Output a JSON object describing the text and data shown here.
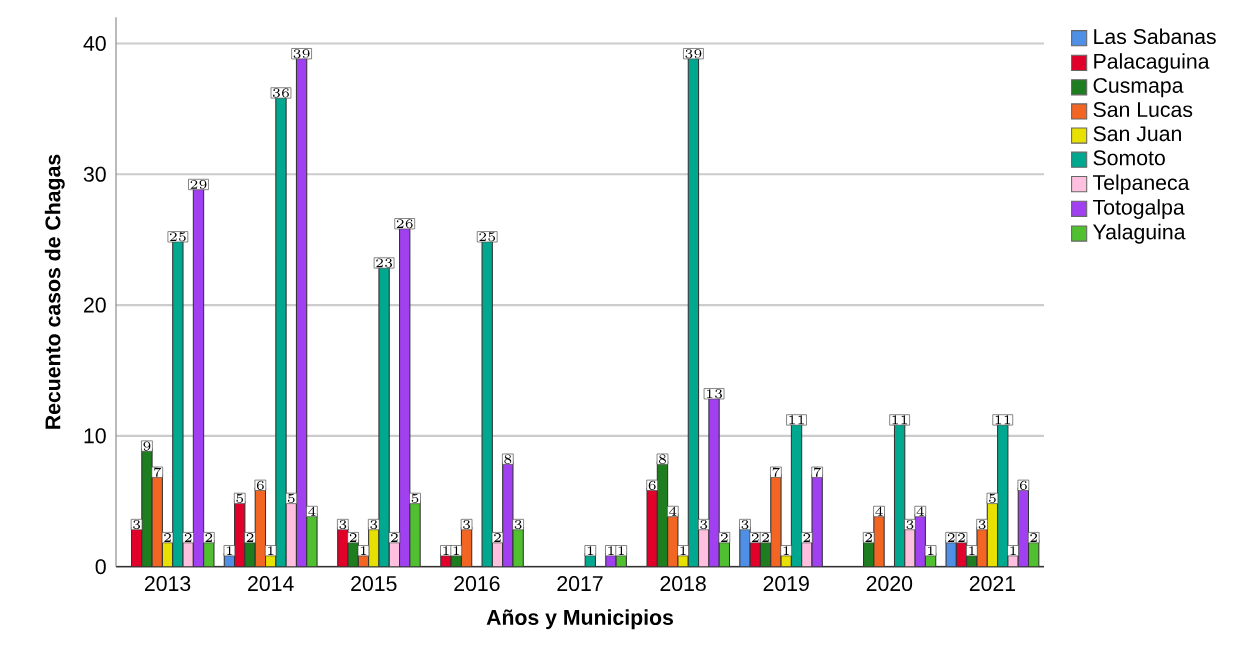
{
  "chart_data": {
    "type": "bar",
    "xlabel": "Años y Municipios",
    "ylabel": "Recuento casos de Chagas",
    "categories": [
      "2013",
      "2014",
      "2015",
      "2016",
      "2017",
      "2018",
      "2019",
      "2020",
      "2021"
    ],
    "series": [
      {
        "name": "Las Sabanas",
        "color": "#4f8fe6",
        "values": [
          null,
          1,
          null,
          null,
          null,
          null,
          3,
          null,
          2
        ]
      },
      {
        "name": "Palacaguina",
        "color": "#e0002a",
        "values": [
          3,
          5,
          3,
          1,
          null,
          6,
          2,
          null,
          2
        ]
      },
      {
        "name": "Cusmapa",
        "color": "#1e7d1e",
        "values": [
          9,
          2,
          2,
          1,
          null,
          8,
          2,
          2,
          1
        ]
      },
      {
        "name": "San Lucas",
        "color": "#f26522",
        "values": [
          7,
          6,
          1,
          3,
          null,
          4,
          7,
          4,
          3
        ]
      },
      {
        "name": "San Juan",
        "color": "#e8e000",
        "values": [
          2,
          1,
          3,
          null,
          null,
          1,
          1,
          null,
          5
        ]
      },
      {
        "name": "Somoto",
        "color": "#00a88f",
        "values": [
          25,
          36,
          23,
          25,
          1,
          39,
          11,
          11,
          11
        ]
      },
      {
        "name": "Telpaneca",
        "color": "#ffc0e0",
        "values": [
          2,
          5,
          2,
          2,
          null,
          3,
          2,
          3,
          1
        ]
      },
      {
        "name": "Totogalpa",
        "color": "#a040f0",
        "values": [
          29,
          39,
          26,
          8,
          1,
          13,
          7,
          4,
          6
        ]
      },
      {
        "name": "Yalaguina",
        "color": "#50c030",
        "values": [
          2,
          4,
          5,
          3,
          1,
          2,
          null,
          1,
          2
        ]
      }
    ],
    "ylim": [
      0,
      42
    ],
    "yticks": [
      0,
      10,
      20,
      30,
      40
    ],
    "grid": "y",
    "legend": "right",
    "data_labels": true
  }
}
